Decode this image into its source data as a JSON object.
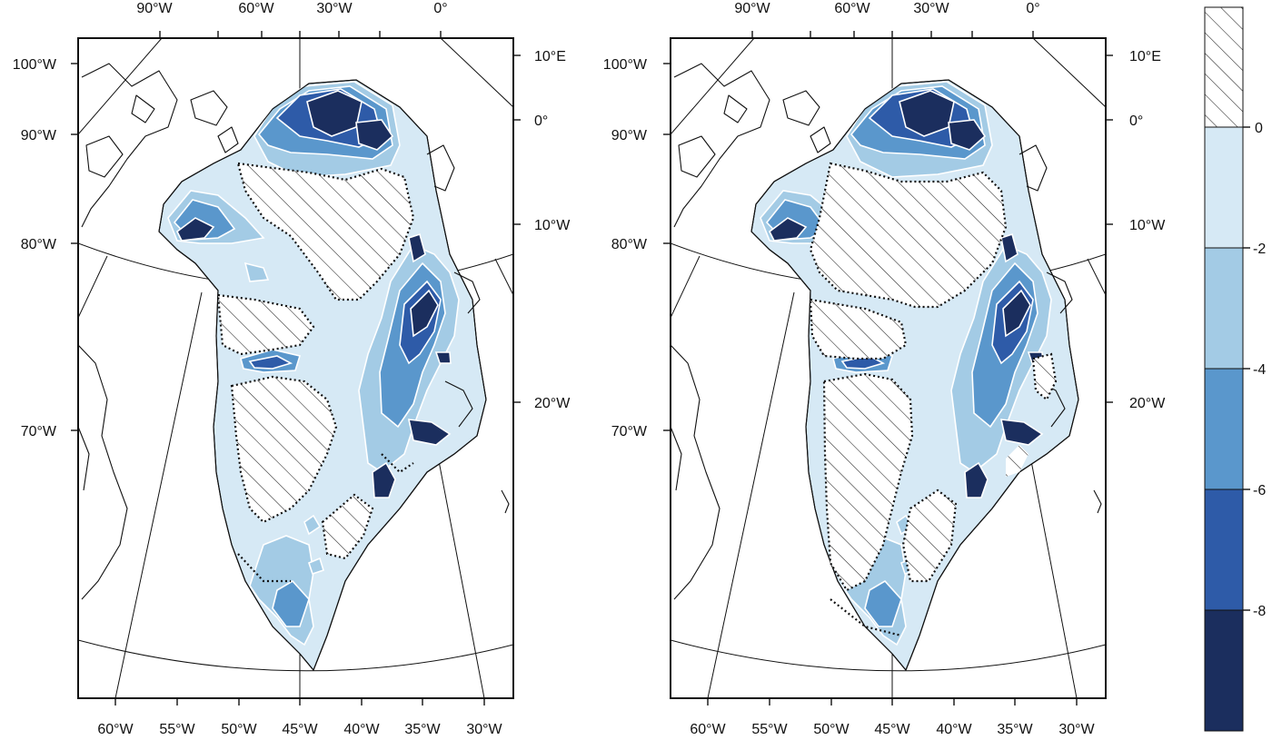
{
  "maps": [
    {
      "top_lon_ticks": [
        "90°W",
        "60°W",
        "30°W",
        "0°"
      ],
      "left_lon_ticks": [
        "100°W",
        "90°W",
        "80°W",
        "70°W"
      ],
      "right_lon_ticks": [
        "10°E",
        "0°",
        "10°W",
        "20°W"
      ],
      "bottom_lon_ticks": [
        "60°W",
        "55°W",
        "50°W",
        "45°W",
        "40°W",
        "35°W",
        "30°W"
      ]
    },
    {
      "top_lon_ticks": [
        "90°W",
        "60°W",
        "30°W",
        "0°"
      ],
      "left_lon_ticks": [
        "100°W",
        "90°W",
        "80°W",
        "70°W"
      ],
      "right_lon_ticks": [
        "10°E",
        "0°",
        "10°W",
        "20°W"
      ],
      "bottom_lon_ticks": [
        "60°W",
        "55°W",
        "50°W",
        "45°W",
        "40°W",
        "35°W",
        "30°W"
      ]
    }
  ],
  "legend": {
    "labels": [
      "0",
      "-2",
      "-4",
      "-6",
      "-8"
    ],
    "colors": [
      "#d6e9f5",
      "#a3cbe5",
      "#5a97cc",
      "#2e5ba8",
      "#1b2e5e"
    ],
    "top_class": "hatched"
  }
}
